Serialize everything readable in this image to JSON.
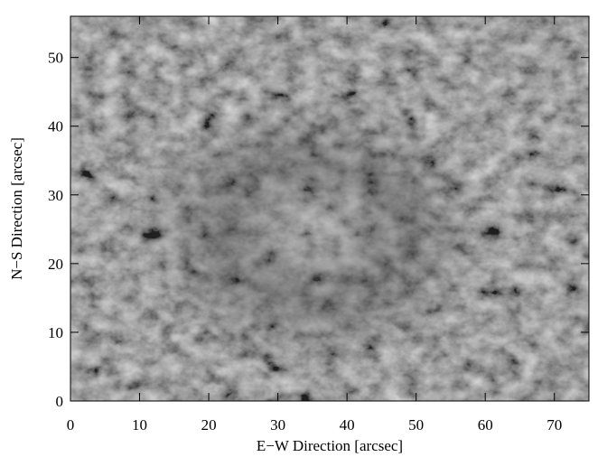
{
  "chart_data": {
    "type": "image",
    "x_label": "E−W Direction   [arcsec]",
    "y_label": "N−S Direction   [arcsec]",
    "xlim": [
      0,
      75
    ],
    "xticks": [
      0,
      10,
      20,
      30,
      40,
      50,
      60,
      70
    ],
    "ylim": [
      0,
      56
    ],
    "yticks": [
      0,
      10,
      20,
      30,
      40,
      50
    ]
  }
}
